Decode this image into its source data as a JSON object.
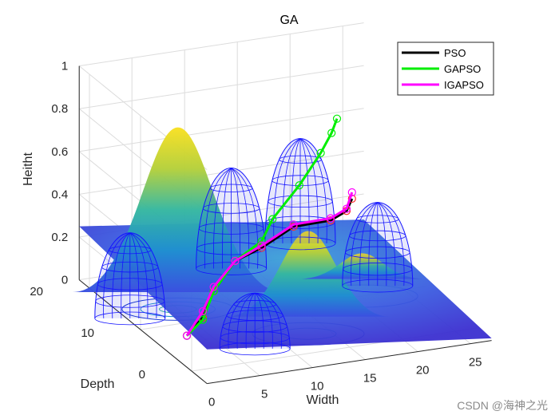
{
  "chart_data": {
    "type": "surface3d",
    "title": "GA",
    "xlabel": "Width",
    "ylabel": "Depth",
    "zlabel": "Heitht",
    "xlim": [
      0,
      27
    ],
    "ylim": [
      -3,
      22
    ],
    "zlim": [
      0,
      1
    ],
    "xticks": [
      "0",
      "5",
      "10",
      "15",
      "20",
      "25"
    ],
    "yticks": [
      "0",
      "10",
      "20"
    ],
    "zticks": [
      "0",
      "0.2",
      "0.4",
      "0.6",
      "0.8",
      "1"
    ],
    "surface_peaks": [
      {
        "x": 5,
        "y": 13,
        "height": 0.85
      },
      {
        "x": 13,
        "y": 4,
        "height": 0.48
      },
      {
        "x": 21,
        "y": 10,
        "height": 0.2
      }
    ],
    "obstacles": [
      {
        "cx": -1,
        "cy": 10,
        "height": 0.46
      },
      {
        "cx": 12,
        "cy": 17,
        "height": 0.53
      },
      {
        "cx": 20,
        "cy": 20,
        "height": 0.55
      },
      {
        "cx": 6,
        "cy": 0,
        "height": 0.32
      },
      {
        "cx": 22,
        "cy": 9,
        "height": 0.45
      }
    ],
    "legend_position": "top-right",
    "series": [
      {
        "name": "PSO",
        "color": "#000000",
        "x": [
          1,
          3,
          5,
          8,
          11,
          15,
          19,
          21,
          22
        ],
        "y": [
          3,
          4,
          6,
          8,
          9,
          11,
          12,
          13,
          14
        ],
        "z": [
          0.1,
          0.15,
          0.22,
          0.3,
          0.32,
          0.35,
          0.33,
          0.34,
          0.37
        ]
      },
      {
        "name": "GAPSO",
        "color": "#00ee00",
        "x": [
          1,
          3,
          5,
          8,
          11,
          13,
          17,
          20,
          22,
          23
        ],
        "y": [
          3,
          4,
          6,
          8,
          9,
          11,
          14,
          16,
          18,
          19
        ],
        "z": [
          0.1,
          0.14,
          0.22,
          0.3,
          0.35,
          0.4,
          0.47,
          0.56,
          0.6,
          0.64
        ]
      },
      {
        "name": "IGAPSO",
        "color": "#ff00ff",
        "x": [
          1,
          3,
          5,
          8,
          11,
          15,
          19,
          21,
          22
        ],
        "y": [
          3,
          4,
          6,
          8,
          9,
          11,
          12,
          13,
          14
        ],
        "z": [
          0.1,
          0.18,
          0.24,
          0.3,
          0.33,
          0.36,
          0.34,
          0.35,
          0.4
        ]
      }
    ]
  },
  "watermark": "CSDN @海神之光"
}
